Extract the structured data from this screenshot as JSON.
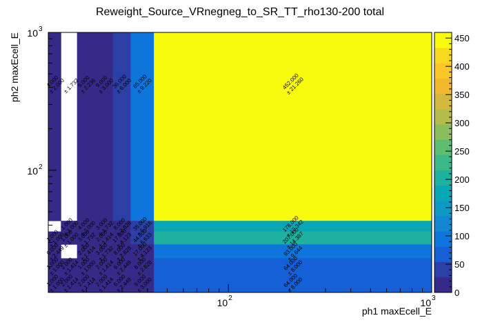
{
  "chart_data": {
    "type": "heatmap",
    "title": "Reweight_Source_VRnegneg_to_SR_TT_rho130-200 total",
    "xlabel": "ph1 maxEcell_E",
    "ylabel": "ph2 maxEcell_E",
    "x_scale": "log",
    "y_scale": "log",
    "xlim": [
      13,
      1000
    ],
    "ylim": [
      13,
      1000
    ],
    "x_edges": [
      13,
      15,
      18,
      22,
      27,
      33,
      43,
      1000
    ],
    "y_edges": [
      13,
      18,
      23,
      29,
      36,
      43,
      1000
    ],
    "x_tick_labels": [
      {
        "value": 100,
        "base": "10",
        "exp": "2"
      },
      {
        "value": 1000,
        "base": "10",
        "exp": "3"
      }
    ],
    "y_tick_labels": [
      {
        "value": 100,
        "base": "10",
        "exp": "2"
      },
      {
        "value": 1000,
        "base": "10",
        "exp": "3"
      }
    ],
    "colorbar": {
      "min": 0,
      "max": 460,
      "ticks": [
        0,
        50,
        100,
        150,
        200,
        250,
        300,
        350,
        400,
        450
      ],
      "palette": [
        "#352a87",
        "#2b3fa6",
        "#1560d6",
        "#0d75dc",
        "#1386d4",
        "#0c99c6",
        "#09a6b5",
        "#1eb1a0",
        "#3cb88a",
        "#5fbc73",
        "#8bbd5d",
        "#b3bc4c",
        "#d4b93e",
        "#f0b72f",
        "#fcc629",
        "#f8d91f",
        "#f9fb0e"
      ]
    },
    "cells": [
      {
        "xi": 0,
        "yi": 5,
        "label": "4.000",
        "err": "± 2.000"
      },
      {
        "xi": 1,
        "yi": 5,
        "label": "",
        "err": "± 1.732"
      },
      {
        "xi": 2,
        "yi": 5,
        "label": "5.000",
        "err": "± 2.236"
      },
      {
        "xi": 3,
        "yi": 5,
        "label": "9.000",
        "err": "± 3.000"
      },
      {
        "xi": 4,
        "yi": 5,
        "label": "36.000",
        "err": "± 6.000"
      },
      {
        "xi": 5,
        "yi": 5,
        "label": "85.000",
        "err": "± 9.220"
      },
      {
        "xi": 6,
        "yi": 5,
        "label": "452.000",
        "err": "± 21.260"
      },
      {
        "xi": 1,
        "yi": 4,
        "label": "1.000",
        "err": "± 1.000"
      },
      {
        "xi": 2,
        "yi": 4,
        "label": "4.000",
        "err": "± 2.000"
      },
      {
        "xi": 3,
        "yi": 4,
        "label": "3.000",
        "err": "± 1.732"
      },
      {
        "xi": 4,
        "yi": 4,
        "label": "8.000",
        "err": "± 2.828"
      },
      {
        "xi": 5,
        "yi": 4,
        "label": "35.000",
        "err": "± 5.916"
      },
      {
        "xi": 6,
        "yi": 4,
        "label": "178.000",
        "err": "± 13.342"
      },
      {
        "xi": 0,
        "yi": 3,
        "label": "1.000",
        "err": "± 1.000"
      },
      {
        "xi": 1,
        "yi": 3,
        "label": "1.000",
        "err": "± 1.000"
      },
      {
        "xi": 2,
        "yi": 3,
        "label": "3.000",
        "err": "± 1.732"
      },
      {
        "xi": 3,
        "yi": 3,
        "label": "2.000",
        "err": "± 1.414"
      },
      {
        "xi": 4,
        "yi": 3,
        "label": "17.000",
        "err": "± 4.123"
      },
      {
        "xi": 5,
        "yi": 3,
        "label": "44.000",
        "err": "± 6.633"
      },
      {
        "xi": 6,
        "yi": 3,
        "label": "207.000",
        "err": "± 14.387"
      },
      {
        "xi": 0,
        "yi": 2,
        "label": "6.000",
        "err": "± 2.449"
      },
      {
        "xi": 2,
        "yi": 2,
        "label": "2.000",
        "err": "± 1.414"
      },
      {
        "xi": 3,
        "yi": 2,
        "label": "3.000",
        "err": "± 1.732"
      },
      {
        "xi": 4,
        "yi": 2,
        "label": "8.000",
        "err": "± 2.828"
      },
      {
        "xi": 5,
        "yi": 2,
        "label": "17.000",
        "err": "± 4.123"
      },
      {
        "xi": 6,
        "yi": 2,
        "label": "93.000",
        "err": "± 9.644"
      },
      {
        "xi": 0,
        "yi": 1,
        "label": "1.000",
        "err": "± 1.000"
      },
      {
        "xi": 1,
        "yi": 1,
        "label": "2.000",
        "err": "± 1.414"
      },
      {
        "xi": 2,
        "yi": 1,
        "label": "1.000",
        "err": "± 1.000"
      },
      {
        "xi": 3,
        "yi": 1,
        "label": "2.000",
        "err": "± 1.414"
      },
      {
        "xi": 4,
        "yi": 1,
        "label": "6.000",
        "err": "± 2.449"
      },
      {
        "xi": 5,
        "yi": 1,
        "label": "8.000",
        "err": "± 2.828"
      },
      {
        "xi": 6,
        "yi": 1,
        "label": "64.000",
        "err": "± 8.000"
      },
      {
        "xi": 0,
        "yi": 0,
        "label": "1.000",
        "err": "± 1.000"
      },
      {
        "xi": 1,
        "yi": 0,
        "label": "2.000",
        "err": "± 1.414"
      },
      {
        "xi": 2,
        "yi": 0,
        "label": "2.000",
        "err": "± 1.414"
      },
      {
        "xi": 3,
        "yi": 0,
        "label": "2.000",
        "err": "± 1.414"
      },
      {
        "xi": 4,
        "yi": 0,
        "label": "6.000",
        "err": "± 2.449"
      },
      {
        "xi": 5,
        "yi": 0,
        "label": "9.000",
        "err": "± 3.000"
      },
      {
        "xi": 6,
        "yi": 0,
        "label": "64.000",
        "err": "± 8.000"
      }
    ]
  }
}
